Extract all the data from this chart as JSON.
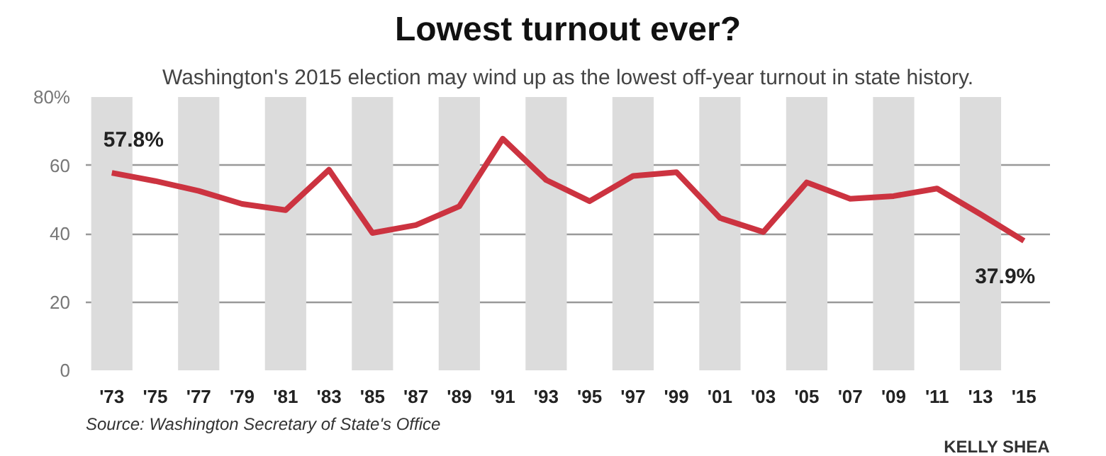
{
  "chart_data": {
    "type": "line",
    "title": "Lowest turnout ever?",
    "subtitle": "Washington's 2015 election may wind up as the lowest off-year turnout in state history.",
    "x": [
      1973,
      1975,
      1977,
      1979,
      1981,
      1983,
      1985,
      1987,
      1989,
      1991,
      1993,
      1995,
      1997,
      1999,
      2001,
      2003,
      2005,
      2007,
      2009,
      2011,
      2013,
      2015
    ],
    "series": [
      {
        "color": "#cc3340",
        "values": [
          57.8,
          55.4,
          52.5,
          48.7,
          46.9,
          58.7,
          40.2,
          42.5,
          48,
          67.8,
          55.7,
          49.5,
          56.9,
          58,
          44.6,
          40.5,
          55,
          50.2,
          51,
          53.2,
          45.7,
          37.9
        ]
      }
    ],
    "xlim": [
      1971.8,
      2016.2
    ],
    "ylim": [
      0,
      80
    ],
    "xticks": [
      {
        "value": 1973,
        "label": "'73"
      },
      {
        "value": 1975,
        "label": "'75"
      },
      {
        "value": 1977,
        "label": "'77"
      },
      {
        "value": 1979,
        "label": "'79"
      },
      {
        "value": 1981,
        "label": "'81"
      },
      {
        "value": 1983,
        "label": "'83"
      },
      {
        "value": 1985,
        "label": "'85"
      },
      {
        "value": 1987,
        "label": "'87"
      },
      {
        "value": 1989,
        "label": "'89"
      },
      {
        "value": 1991,
        "label": "'91"
      },
      {
        "value": 1993,
        "label": "'93"
      },
      {
        "value": 1995,
        "label": "'95"
      },
      {
        "value": 1997,
        "label": "'97"
      },
      {
        "value": 1999,
        "label": "'99"
      },
      {
        "value": 2001,
        "label": "'01"
      },
      {
        "value": 2003,
        "label": "'03"
      },
      {
        "value": 2005,
        "label": "'05"
      },
      {
        "value": 2007,
        "label": "'07"
      },
      {
        "value": 2009,
        "label": "'09"
      },
      {
        "value": 2011,
        "label": "'11"
      },
      {
        "value": 2013,
        "label": "'13"
      },
      {
        "value": 2015,
        "label": "'15"
      }
    ],
    "yticks": [
      0,
      20,
      40,
      60,
      {
        "value": 80,
        "label": "80%"
      }
    ],
    "grid": "y",
    "marker": "none",
    "line_style": "solid",
    "bands": [
      {
        "axis": "x",
        "from": 1972.05,
        "to": 1973.95,
        "color": "#dcdcdc"
      },
      {
        "axis": "x",
        "from": 1976.05,
        "to": 1977.95,
        "color": "#dcdcdc"
      },
      {
        "axis": "x",
        "from": 1980.05,
        "to": 1981.95,
        "color": "#dcdcdc"
      },
      {
        "axis": "x",
        "from": 1984.05,
        "to": 1985.95,
        "color": "#dcdcdc"
      },
      {
        "axis": "x",
        "from": 1988.05,
        "to": 1989.95,
        "color": "#dcdcdc"
      },
      {
        "axis": "x",
        "from": 1992.05,
        "to": 1993.95,
        "color": "#dcdcdc"
      },
      {
        "axis": "x",
        "from": 1996.05,
        "to": 1997.95,
        "color": "#dcdcdc"
      },
      {
        "axis": "x",
        "from": 2000.05,
        "to": 2001.95,
        "color": "#dcdcdc"
      },
      {
        "axis": "x",
        "from": 2004.05,
        "to": 2005.95,
        "color": "#dcdcdc"
      },
      {
        "axis": "x",
        "from": 2008.05,
        "to": 2009.95,
        "color": "#dcdcdc"
      },
      {
        "axis": "x",
        "from": 2012.05,
        "to": 2013.95,
        "color": "#dcdcdc"
      }
    ],
    "annotations": [
      {
        "text": "57.8%",
        "x": 1973,
        "y": 57.8
      },
      {
        "text": "37.9%",
        "x": 2015,
        "y": 37.9
      },
      "Source: Washington Secretary of State's Office",
      "KELLY SHEA"
    ]
  }
}
